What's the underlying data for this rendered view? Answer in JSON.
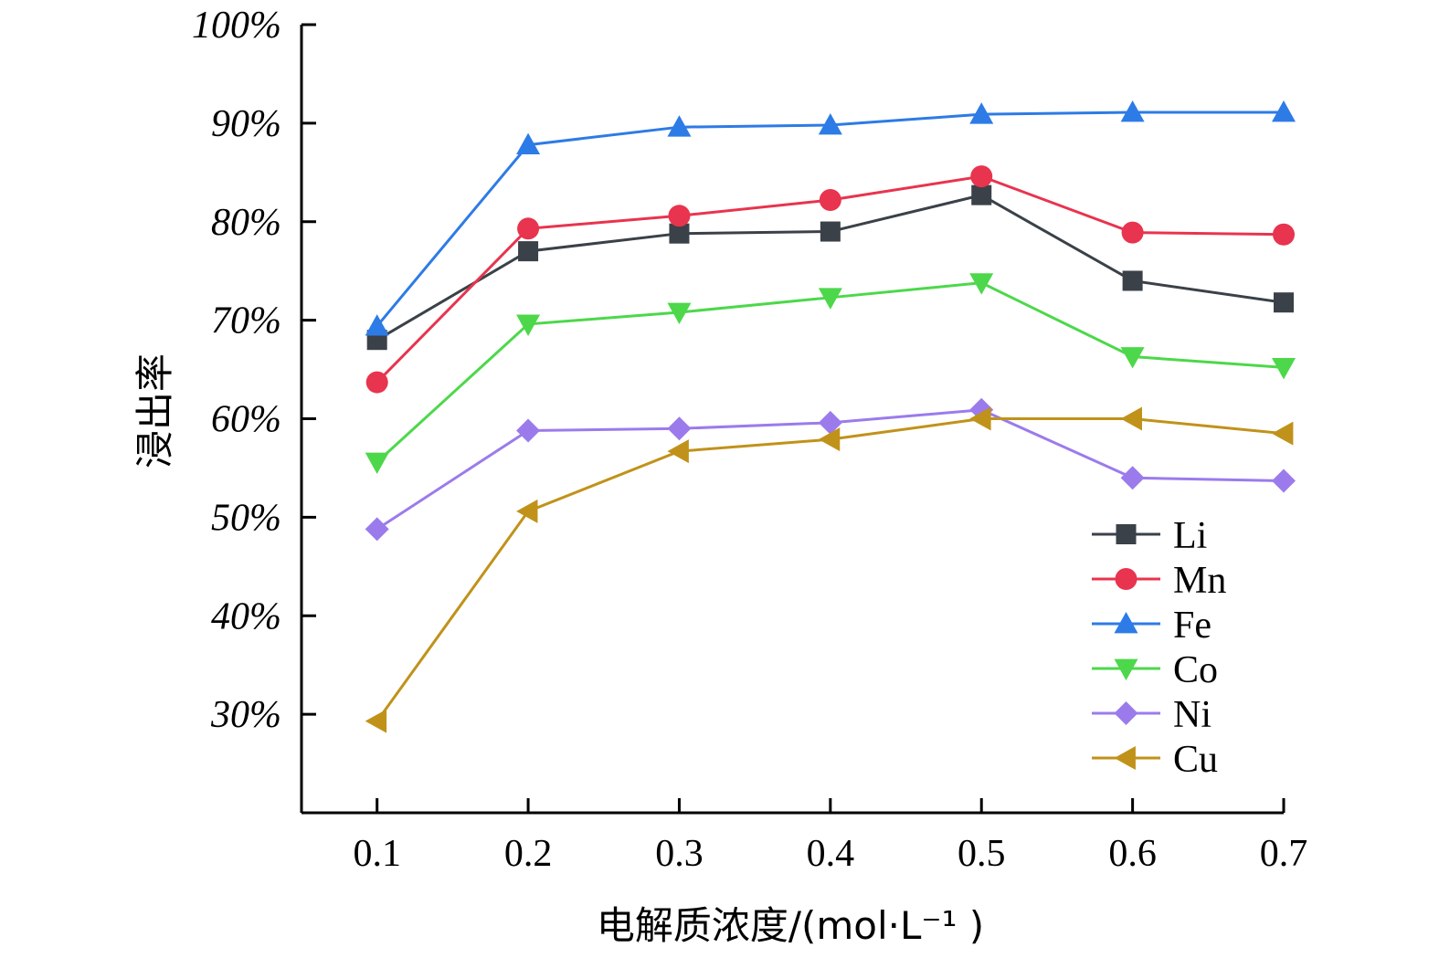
{
  "chart_data": {
    "type": "line",
    "title": "",
    "xlabel": "电解质浓度/(mol·L⁻¹ )",
    "ylabel": "浸出率",
    "x": [
      0.1,
      0.2,
      0.3,
      0.4,
      0.5,
      0.6,
      0.7
    ],
    "x_tick_labels": [
      "0.1",
      "0.2",
      "0.3",
      "0.4",
      "0.5",
      "0.6",
      "0.7"
    ],
    "ylim": [
      20,
      100
    ],
    "y_tick_values": [
      30,
      40,
      50,
      60,
      70,
      80,
      90,
      100
    ],
    "y_tick_labels": [
      "30%",
      "40%",
      "50%",
      "60%",
      "70%",
      "80%",
      "90%",
      "100%"
    ],
    "grid": false,
    "legend_position": "bottom-right",
    "series": [
      {
        "name": "Li",
        "color": "#3a4148",
        "marker": "square",
        "values": [
          68.0,
          77.0,
          78.8,
          79.0,
          82.7,
          74.0,
          71.8
        ]
      },
      {
        "name": "Mn",
        "color": "#e8344e",
        "marker": "circle",
        "values": [
          63.7,
          79.3,
          80.6,
          82.2,
          84.6,
          78.9,
          78.7
        ]
      },
      {
        "name": "Fe",
        "color": "#2d7be6",
        "marker": "triangle-up",
        "values": [
          69.4,
          87.8,
          89.6,
          89.8,
          90.9,
          91.1,
          91.1
        ]
      },
      {
        "name": "Co",
        "color": "#4cd84a",
        "marker": "triangle-down",
        "values": [
          55.6,
          69.6,
          70.8,
          72.3,
          73.8,
          66.3,
          65.2
        ]
      },
      {
        "name": "Ni",
        "color": "#9b7bec",
        "marker": "diamond",
        "values": [
          48.8,
          58.8,
          59.0,
          59.6,
          60.9,
          54.0,
          53.7
        ]
      },
      {
        "name": "Cu",
        "color": "#c1921a",
        "marker": "triangle-left",
        "values": [
          29.3,
          50.6,
          56.7,
          57.9,
          60.0,
          60.0,
          58.5
        ]
      }
    ]
  }
}
